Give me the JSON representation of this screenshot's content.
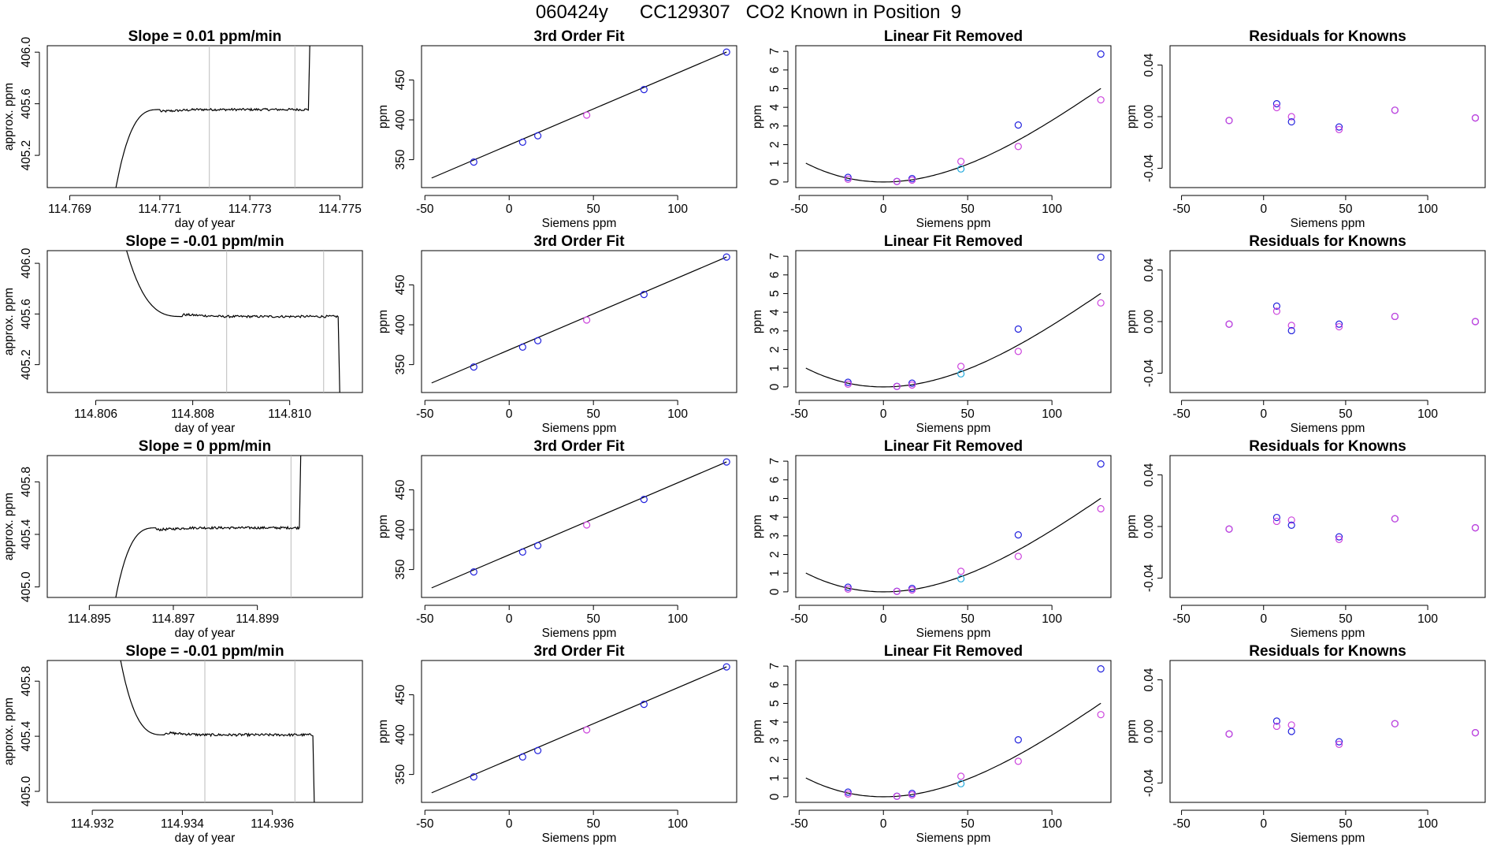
{
  "figure": {
    "title": "060424y      CC129307   CO2 Known in Position  9"
  },
  "colors": {
    "trace": "#000000",
    "guide": "#bbbbbb",
    "fit_line": "#000000",
    "point_blue": "#2222dd",
    "point_magenta": "#cc44dd",
    "point_cyan": "#22aadd",
    "point_purple": "#7722dd",
    "frame": "#000000"
  },
  "chart_data": [
    {
      "type": "line",
      "title": "Slope =  0.01  ppm/min",
      "xlabel": "day of year",
      "ylabel": "approx. ppm",
      "xlim": [
        114.7685,
        114.7755
      ],
      "ylim": [
        404.95,
        406.05
      ],
      "xticks": [
        "114.769",
        "114.771",
        "114.773",
        "114.775"
      ],
      "yticks": [
        "405.2",
        "405.6",
        "406.0"
      ],
      "guides": [
        114.7721,
        114.774
      ],
      "trace": {
        "start": 114.77,
        "rise_end": 114.771,
        "plateau": 405.555,
        "end": 114.7743,
        "end_dir": "up"
      }
    },
    {
      "type": "scatter",
      "title": "3rd Order Fit",
      "xlabel": "Siemens ppm",
      "ylabel": "ppm",
      "xlim": [
        -52,
        135
      ],
      "ylim": [
        315,
        493
      ],
      "xticks": [
        "-50",
        "0",
        "50",
        "100"
      ],
      "yticks": [
        "350",
        "400",
        "450"
      ],
      "x": [
        -21,
        8,
        17,
        46,
        80,
        129
      ],
      "y": [
        347,
        372,
        380,
        406,
        438,
        485
      ],
      "colors": [
        "blue",
        "blue",
        "blue",
        "magenta",
        "blue",
        "blue"
      ],
      "fit_line": {
        "x": [
          -46,
          129
        ],
        "y": [
          327,
          485
        ]
      }
    },
    {
      "type": "scatter",
      "title": "Linear Fit Removed",
      "xlabel": "Siemens ppm",
      "ylabel": "ppm",
      "xlim": [
        -52,
        135
      ],
      "ylim": [
        -0.3,
        7.3
      ],
      "xticks": [
        "-50",
        "0",
        "50",
        "100"
      ],
      "yticks": [
        "0",
        "1",
        "2",
        "3",
        "4",
        "5",
        "6",
        "7"
      ],
      "points": [
        {
          "x": -21,
          "y": 0.25,
          "c": "blue"
        },
        {
          "x": -21,
          "y": 0.15,
          "c": "magenta"
        },
        {
          "x": 8,
          "y": 0.03,
          "c": "blue"
        },
        {
          "x": 8,
          "y": 0.02,
          "c": "magenta"
        },
        {
          "x": 17,
          "y": 0.18,
          "c": "blue"
        },
        {
          "x": 17,
          "y": 0.1,
          "c": "magenta"
        },
        {
          "x": 46,
          "y": 1.1,
          "c": "magenta"
        },
        {
          "x": 46,
          "y": 0.7,
          "c": "cyan"
        },
        {
          "x": 80,
          "y": 3.05,
          "c": "blue"
        },
        {
          "x": 80,
          "y": 1.9,
          "c": "magenta"
        },
        {
          "x": 129,
          "y": 6.85,
          "c": "blue"
        },
        {
          "x": 129,
          "y": 4.4,
          "c": "magenta"
        }
      ],
      "curve": {
        "from": -46,
        "to": 129,
        "center": 0,
        "a": 0.00043,
        "b": -1e-06
      }
    },
    {
      "type": "scatter",
      "title": "Residuals for Knowns",
      "xlabel": "Siemens ppm",
      "ylabel": "ppm",
      "xlim": [
        -57,
        135
      ],
      "ylim": [
        -0.055,
        0.055
      ],
      "xticks": [
        "-50",
        "0",
        "50",
        "100"
      ],
      "yticks": [
        "-0.04",
        "0.00",
        "0.04"
      ],
      "points": [
        {
          "x": -21,
          "y": -0.003,
          "c": "blue"
        },
        {
          "x": -21,
          "y": -0.003,
          "c": "magenta"
        },
        {
          "x": 8,
          "y": 0.01,
          "c": "blue"
        },
        {
          "x": 8,
          "y": 0.007,
          "c": "magenta"
        },
        {
          "x": 17,
          "y": 0.0,
          "c": "magenta"
        },
        {
          "x": 17,
          "y": -0.004,
          "c": "blue"
        },
        {
          "x": 46,
          "y": -0.008,
          "c": "blue"
        },
        {
          "x": 46,
          "y": -0.01,
          "c": "magenta"
        },
        {
          "x": 80,
          "y": 0.005,
          "c": "blue"
        },
        {
          "x": 80,
          "y": 0.005,
          "c": "magenta"
        },
        {
          "x": 129,
          "y": -0.001,
          "c": "blue"
        },
        {
          "x": 129,
          "y": -0.001,
          "c": "magenta"
        }
      ]
    },
    {
      "type": "line",
      "title": "Slope =  -0.01  ppm/min",
      "xlabel": "day of year",
      "ylabel": "approx. ppm",
      "xlim": [
        114.805,
        114.8115
      ],
      "ylim": [
        404.98,
        406.1
      ],
      "xticks": [
        "114.806",
        "114.808",
        "114.810"
      ],
      "yticks": [
        "405.2",
        "405.6",
        "406.0"
      ],
      "guides": [
        114.8087,
        114.8107
      ],
      "trace": {
        "start": 114.8066,
        "fall_end": 114.8078,
        "plateau": 405.58,
        "end": 114.811,
        "end_dir": "down"
      }
    },
    {
      "type": "scatter",
      "title": "3rd Order Fit",
      "xlabel": "Siemens ppm",
      "ylabel": "ppm",
      "xlim": [
        -52,
        135
      ],
      "ylim": [
        315,
        493
      ],
      "xticks": [
        "-50",
        "0",
        "50",
        "100"
      ],
      "yticks": [
        "350",
        "400",
        "450"
      ],
      "x": [
        -21,
        8,
        17,
        46,
        80,
        129
      ],
      "y": [
        347,
        372,
        380,
        406,
        438,
        485
      ],
      "colors": [
        "blue",
        "blue",
        "blue",
        "magenta",
        "blue",
        "blue"
      ],
      "fit_line": {
        "x": [
          -46,
          129
        ],
        "y": [
          327,
          485
        ]
      }
    },
    {
      "type": "scatter",
      "title": "Linear Fit Removed",
      "xlabel": "Siemens ppm",
      "ylabel": "ppm",
      "xlim": [
        -52,
        135
      ],
      "ylim": [
        -0.3,
        7.3
      ],
      "xticks": [
        "-50",
        "0",
        "50",
        "100"
      ],
      "yticks": [
        "0",
        "1",
        "2",
        "3",
        "4",
        "5",
        "6",
        "7"
      ],
      "points": [
        {
          "x": -21,
          "y": 0.25,
          "c": "blue"
        },
        {
          "x": -21,
          "y": 0.15,
          "c": "magenta"
        },
        {
          "x": 8,
          "y": 0.03,
          "c": "blue"
        },
        {
          "x": 8,
          "y": 0.02,
          "c": "magenta"
        },
        {
          "x": 17,
          "y": 0.2,
          "c": "blue"
        },
        {
          "x": 17,
          "y": 0.1,
          "c": "magenta"
        },
        {
          "x": 46,
          "y": 1.1,
          "c": "magenta"
        },
        {
          "x": 46,
          "y": 0.7,
          "c": "cyan"
        },
        {
          "x": 80,
          "y": 3.1,
          "c": "blue"
        },
        {
          "x": 80,
          "y": 1.9,
          "c": "magenta"
        },
        {
          "x": 129,
          "y": 6.95,
          "c": "blue"
        },
        {
          "x": 129,
          "y": 4.5,
          "c": "magenta"
        }
      ],
      "curve": {
        "from": -46,
        "to": 129,
        "center": 0,
        "a": 0.00043,
        "b": -1e-06
      }
    },
    {
      "type": "scatter",
      "title": "Residuals for Knowns",
      "xlabel": "Siemens ppm",
      "ylabel": "ppm",
      "xlim": [
        -57,
        135
      ],
      "ylim": [
        -0.055,
        0.055
      ],
      "xticks": [
        "-50",
        "0",
        "50",
        "100"
      ],
      "yticks": [
        "-0.04",
        "0.00",
        "0.04"
      ],
      "points": [
        {
          "x": -21,
          "y": -0.002,
          "c": "blue"
        },
        {
          "x": -21,
          "y": -0.002,
          "c": "magenta"
        },
        {
          "x": 8,
          "y": 0.012,
          "c": "blue"
        },
        {
          "x": 8,
          "y": 0.008,
          "c": "magenta"
        },
        {
          "x": 17,
          "y": -0.003,
          "c": "magenta"
        },
        {
          "x": 17,
          "y": -0.007,
          "c": "blue"
        },
        {
          "x": 46,
          "y": -0.002,
          "c": "blue"
        },
        {
          "x": 46,
          "y": -0.004,
          "c": "magenta"
        },
        {
          "x": 80,
          "y": 0.004,
          "c": "blue"
        },
        {
          "x": 80,
          "y": 0.004,
          "c": "magenta"
        },
        {
          "x": 129,
          "y": 0.0,
          "c": "blue"
        },
        {
          "x": 129,
          "y": 0.0,
          "c": "magenta"
        }
      ]
    },
    {
      "type": "line",
      "title": "Slope =  0  ppm/min",
      "xlabel": "day of year",
      "ylabel": "approx. ppm",
      "xlim": [
        114.894,
        114.9015
      ],
      "ylim": [
        404.92,
        406.0
      ],
      "xticks": [
        "114.895",
        "114.897",
        "114.899"
      ],
      "yticks": [
        "405.0",
        "405.4",
        "405.8"
      ],
      "guides": [
        114.8978,
        114.8998
      ],
      "trace": {
        "start": 114.8956,
        "rise_end": 114.8966,
        "plateau": 405.45,
        "end": 114.9,
        "end_dir": "up"
      }
    },
    {
      "type": "scatter",
      "title": "3rd Order Fit",
      "xlabel": "Siemens ppm",
      "ylabel": "ppm",
      "xlim": [
        -52,
        135
      ],
      "ylim": [
        315,
        493
      ],
      "xticks": [
        "-50",
        "0",
        "50",
        "100"
      ],
      "yticks": [
        "350",
        "400",
        "450"
      ],
      "x": [
        -21,
        8,
        17,
        46,
        80,
        129
      ],
      "y": [
        347,
        372,
        380,
        406,
        438,
        485
      ],
      "colors": [
        "blue",
        "blue",
        "blue",
        "magenta",
        "blue",
        "blue"
      ],
      "fit_line": {
        "x": [
          -46,
          129
        ],
        "y": [
          327,
          485
        ]
      }
    },
    {
      "type": "scatter",
      "title": "Linear Fit Removed",
      "xlabel": "Siemens ppm",
      "ylabel": "ppm",
      "xlim": [
        -52,
        135
      ],
      "ylim": [
        -0.3,
        7.3
      ],
      "xticks": [
        "-50",
        "0",
        "50",
        "100"
      ],
      "yticks": [
        "0",
        "1",
        "2",
        "3",
        "4",
        "5",
        "6",
        "7"
      ],
      "points": [
        {
          "x": -21,
          "y": 0.25,
          "c": "blue"
        },
        {
          "x": -21,
          "y": 0.15,
          "c": "magenta"
        },
        {
          "x": 8,
          "y": 0.03,
          "c": "blue"
        },
        {
          "x": 8,
          "y": 0.02,
          "c": "magenta"
        },
        {
          "x": 17,
          "y": 0.18,
          "c": "blue"
        },
        {
          "x": 17,
          "y": 0.1,
          "c": "magenta"
        },
        {
          "x": 46,
          "y": 1.1,
          "c": "magenta"
        },
        {
          "x": 46,
          "y": 0.7,
          "c": "cyan"
        },
        {
          "x": 80,
          "y": 3.05,
          "c": "blue"
        },
        {
          "x": 80,
          "y": 1.9,
          "c": "magenta"
        },
        {
          "x": 129,
          "y": 6.85,
          "c": "blue"
        },
        {
          "x": 129,
          "y": 4.45,
          "c": "magenta"
        }
      ],
      "curve": {
        "from": -46,
        "to": 129,
        "center": 0,
        "a": 0.00043,
        "b": -1e-06
      }
    },
    {
      "type": "scatter",
      "title": "Residuals for Knowns",
      "xlabel": "Siemens ppm",
      "ylabel": "ppm",
      "xlim": [
        -57,
        135
      ],
      "ylim": [
        -0.055,
        0.055
      ],
      "xticks": [
        "-50",
        "0",
        "50",
        "100"
      ],
      "yticks": [
        "-0.04",
        "0.00",
        "0.04"
      ],
      "points": [
        {
          "x": -21,
          "y": -0.002,
          "c": "blue"
        },
        {
          "x": -21,
          "y": -0.002,
          "c": "magenta"
        },
        {
          "x": 8,
          "y": 0.007,
          "c": "blue"
        },
        {
          "x": 8,
          "y": 0.004,
          "c": "magenta"
        },
        {
          "x": 17,
          "y": 0.005,
          "c": "magenta"
        },
        {
          "x": 17,
          "y": 0.001,
          "c": "blue"
        },
        {
          "x": 46,
          "y": -0.008,
          "c": "blue"
        },
        {
          "x": 46,
          "y": -0.01,
          "c": "magenta"
        },
        {
          "x": 80,
          "y": 0.006,
          "c": "blue"
        },
        {
          "x": 80,
          "y": 0.006,
          "c": "magenta"
        },
        {
          "x": 129,
          "y": -0.001,
          "c": "blue"
        },
        {
          "x": 129,
          "y": -0.001,
          "c": "magenta"
        }
      ]
    },
    {
      "type": "line",
      "title": "Slope =  -0.01  ppm/min",
      "xlabel": "day of year",
      "ylabel": "approx. ppm",
      "xlim": [
        114.931,
        114.938
      ],
      "ylim": [
        404.92,
        405.95
      ],
      "xticks": [
        "114.932",
        "114.934",
        "114.936"
      ],
      "yticks": [
        "405.0",
        "405.4",
        "405.8"
      ],
      "guides": [
        114.9345,
        114.9365
      ],
      "trace": {
        "start": 114.9326,
        "fall_end": 114.9336,
        "plateau": 405.41,
        "end": 114.9369,
        "end_dir": "down"
      }
    },
    {
      "type": "scatter",
      "title": "3rd Order Fit",
      "xlabel": "Siemens ppm",
      "ylabel": "ppm",
      "xlim": [
        -52,
        135
      ],
      "ylim": [
        315,
        493
      ],
      "xticks": [
        "-50",
        "0",
        "50",
        "100"
      ],
      "yticks": [
        "350",
        "400",
        "450"
      ],
      "x": [
        -21,
        8,
        17,
        46,
        80,
        129
      ],
      "y": [
        347,
        372,
        380,
        406,
        438,
        485
      ],
      "colors": [
        "blue",
        "blue",
        "blue",
        "magenta",
        "blue",
        "blue"
      ],
      "fit_line": {
        "x": [
          -46,
          129
        ],
        "y": [
          327,
          485
        ]
      }
    },
    {
      "type": "scatter",
      "title": "Linear Fit Removed",
      "xlabel": "Siemens ppm",
      "ylabel": "ppm",
      "xlim": [
        -52,
        135
      ],
      "ylim": [
        -0.3,
        7.3
      ],
      "xticks": [
        "-50",
        "0",
        "50",
        "100"
      ],
      "yticks": [
        "0",
        "1",
        "2",
        "3",
        "4",
        "5",
        "6",
        "7"
      ],
      "points": [
        {
          "x": -21,
          "y": 0.25,
          "c": "blue"
        },
        {
          "x": -21,
          "y": 0.15,
          "c": "magenta"
        },
        {
          "x": 8,
          "y": 0.03,
          "c": "blue"
        },
        {
          "x": 8,
          "y": 0.02,
          "c": "magenta"
        },
        {
          "x": 17,
          "y": 0.18,
          "c": "blue"
        },
        {
          "x": 17,
          "y": 0.1,
          "c": "magenta"
        },
        {
          "x": 46,
          "y": 1.1,
          "c": "magenta"
        },
        {
          "x": 46,
          "y": 0.7,
          "c": "cyan"
        },
        {
          "x": 80,
          "y": 3.05,
          "c": "blue"
        },
        {
          "x": 80,
          "y": 1.9,
          "c": "magenta"
        },
        {
          "x": 129,
          "y": 6.85,
          "c": "blue"
        },
        {
          "x": 129,
          "y": 4.4,
          "c": "magenta"
        }
      ],
      "curve": {
        "from": -46,
        "to": 129,
        "center": 0,
        "a": 0.00043,
        "b": -1e-06
      }
    },
    {
      "type": "scatter",
      "title": "Residuals for Knowns",
      "xlabel": "Siemens ppm",
      "ylabel": "ppm",
      "xlim": [
        -57,
        135
      ],
      "ylim": [
        -0.055,
        0.055
      ],
      "xticks": [
        "-50",
        "0",
        "50",
        "100"
      ],
      "yticks": [
        "-0.04",
        "0.00",
        "0.04"
      ],
      "points": [
        {
          "x": -21,
          "y": -0.002,
          "c": "blue"
        },
        {
          "x": -21,
          "y": -0.002,
          "c": "magenta"
        },
        {
          "x": 8,
          "y": 0.008,
          "c": "blue"
        },
        {
          "x": 8,
          "y": 0.004,
          "c": "magenta"
        },
        {
          "x": 17,
          "y": 0.005,
          "c": "magenta"
        },
        {
          "x": 17,
          "y": 0.0,
          "c": "blue"
        },
        {
          "x": 46,
          "y": -0.008,
          "c": "blue"
        },
        {
          "x": 46,
          "y": -0.01,
          "c": "magenta"
        },
        {
          "x": 80,
          "y": 0.006,
          "c": "blue"
        },
        {
          "x": 80,
          "y": 0.006,
          "c": "magenta"
        },
        {
          "x": 129,
          "y": -0.001,
          "c": "blue"
        },
        {
          "x": 129,
          "y": -0.001,
          "c": "magenta"
        }
      ]
    }
  ]
}
